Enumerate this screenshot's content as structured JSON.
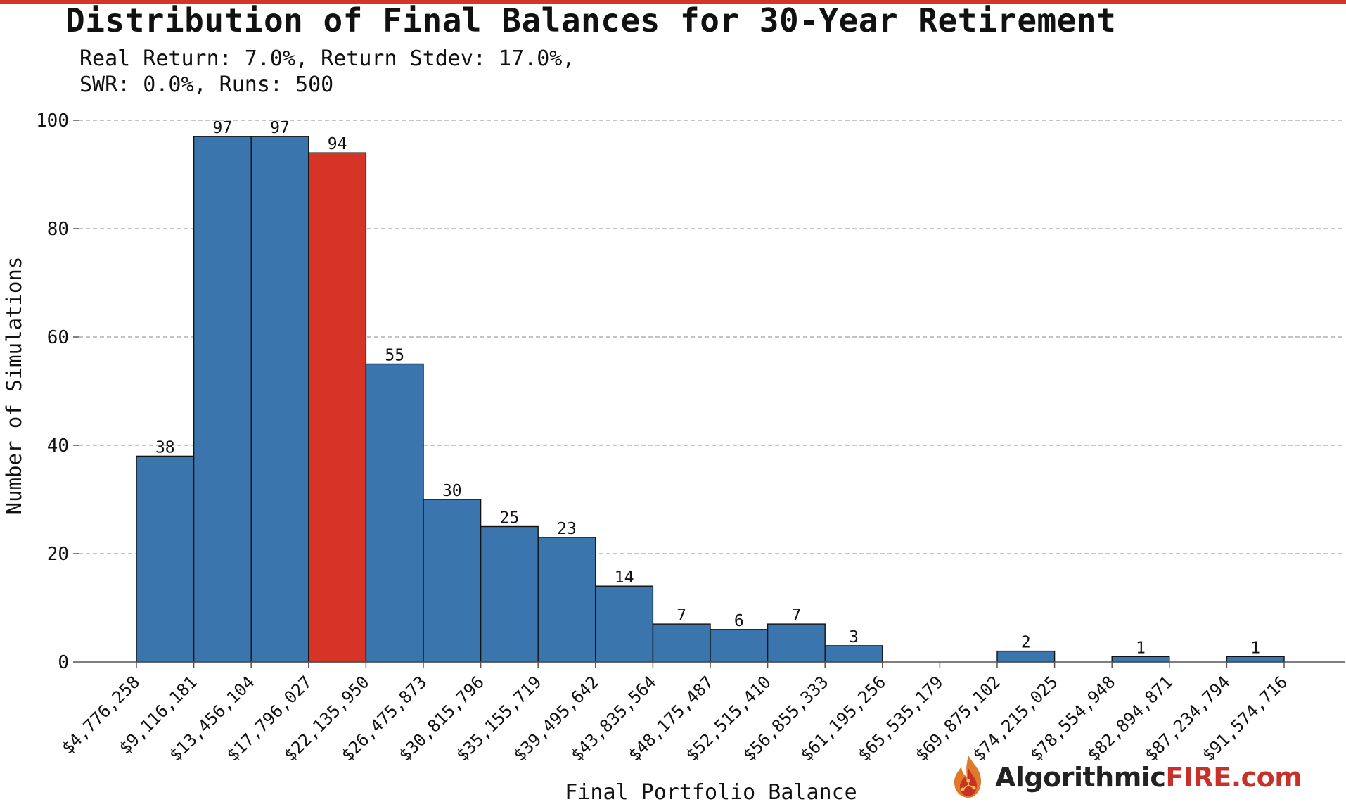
{
  "title": "Distribution of Final Balances for 30-Year Retirement",
  "subtitle_line1": "Real Return: 7.0%, Return Stdev: 17.0%,",
  "subtitle_line2": "SWR: 0.0%, Runs: 500",
  "brand": {
    "part1": "Algorithmic",
    "part2": "FIRE",
    "part3": ".com",
    "icon": "flame-circuit-icon"
  },
  "colors": {
    "bar": "#3b75ad",
    "highlight": "#d63426",
    "accent": "#d63426"
  },
  "chart_data": {
    "type": "bar",
    "xlabel": "Final Portfolio Balance",
    "ylabel": "Number of Simulations",
    "ylim": [
      0,
      100
    ],
    "yticks": [
      0,
      20,
      40,
      60,
      80,
      100
    ],
    "grid": "horizontal-dashed",
    "bin_edges": [
      "$4,776,258",
      "$9,116,181",
      "$13,456,104",
      "$17,796,027",
      "$22,135,950",
      "$26,475,873",
      "$30,815,796",
      "$35,155,719",
      "$39,495,642",
      "$43,835,564",
      "$48,175,487",
      "$52,515,410",
      "$56,855,333",
      "$61,195,256",
      "$65,535,179",
      "$69,875,102",
      "$74,215,025",
      "$78,554,948",
      "$82,894,871",
      "$87,234,794",
      "$91,574,716"
    ],
    "values": [
      38,
      97,
      97,
      94,
      55,
      30,
      25,
      23,
      14,
      7,
      6,
      7,
      3,
      0,
      0,
      2,
      0,
      1,
      0,
      1
    ],
    "highlight_index": 3
  }
}
